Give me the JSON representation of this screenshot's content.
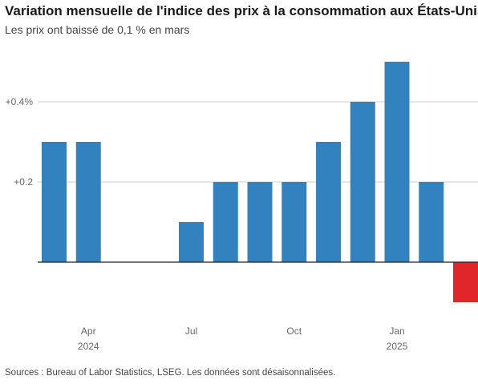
{
  "title": "Variation mensuelle de l'indice des prix à la consommation aux États-Unis",
  "subtitle": "Les prix ont baissé de 0,1 % en mars",
  "source": "Sources : Bureau of Labor Statistics, LSEG. Les données sont désaisonnalisées.",
  "colors": {
    "positive": "#3382c0",
    "negative": "#e0262a",
    "grid": "#cccccc",
    "axis": "#222222"
  },
  "chart_data": {
    "type": "bar",
    "title": "Variation mensuelle de l'indice des prix à la consommation aux États-Unis",
    "subtitle": "Les prix ont baissé de 0,1 % en mars",
    "categories": [
      "2024-03",
      "2024-04",
      "2024-05",
      "2024-06",
      "2024-07",
      "2024-08",
      "2024-09",
      "2024-10",
      "2024-11",
      "2024-12",
      "2025-01",
      "2025-02",
      "2025-03"
    ],
    "values": [
      0.3,
      0.3,
      0.0,
      0.0,
      0.1,
      0.2,
      0.2,
      0.2,
      0.3,
      0.4,
      0.5,
      0.2,
      -0.1
    ],
    "ylim": [
      -0.1,
      0.5
    ],
    "yticks": [
      {
        "value": 0.4,
        "label": "+0.4%"
      },
      {
        "value": 0.2,
        "label": "+0.2"
      }
    ],
    "xticks": [
      {
        "category": "2024-04",
        "label": "Apr",
        "year": "2024"
      },
      {
        "category": "2024-07",
        "label": "Jul",
        "year": ""
      },
      {
        "category": "2024-10",
        "label": "Oct",
        "year": ""
      },
      {
        "category": "2025-01",
        "label": "Jan",
        "year": "2025"
      }
    ],
    "grid": true,
    "xlabel": "",
    "ylabel": ""
  }
}
